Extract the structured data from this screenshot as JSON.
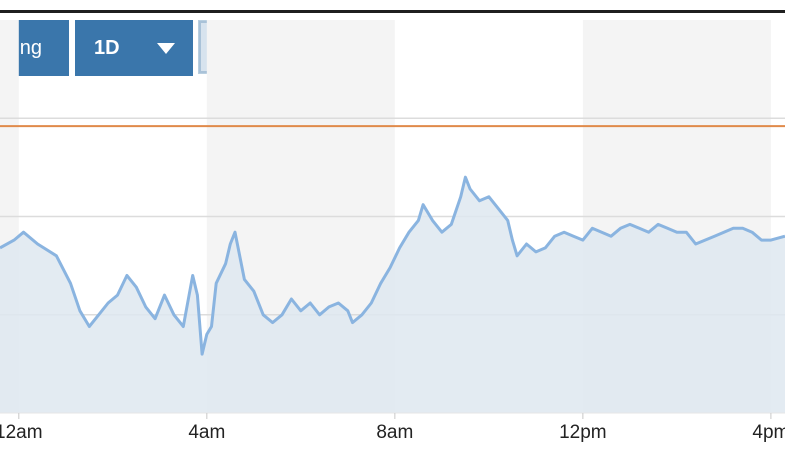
{
  "toolbar": {
    "chart_button_label": "arting",
    "range_selector": "1D",
    "unit_toggle": {
      "dollar": "$",
      "percent": "%",
      "selected": "$"
    }
  },
  "colors": {
    "line": "#8ab4e0",
    "area": "#dee8f0",
    "reference_line": "#e08a4a",
    "gridline": "#dcdcdc",
    "shaded_band": "#f4f4f4",
    "button": "#3a76ab"
  },
  "chart_data": {
    "type": "area",
    "x_tick_labels": [
      "12am",
      "4am",
      "8am",
      "12pm",
      "4pm"
    ],
    "xlim_hours": [
      -0.4,
      16.3
    ],
    "ylim": [
      0,
      100
    ],
    "reference_value": 73,
    "points": [
      [
        -0.4,
        42
      ],
      [
        -0.1,
        44
      ],
      [
        0.1,
        46
      ],
      [
        0.4,
        43
      ],
      [
        0.8,
        40
      ],
      [
        1.1,
        33
      ],
      [
        1.3,
        26
      ],
      [
        1.5,
        22
      ],
      [
        1.7,
        25
      ],
      [
        1.9,
        28
      ],
      [
        2.1,
        30
      ],
      [
        2.3,
        35
      ],
      [
        2.5,
        32
      ],
      [
        2.7,
        27
      ],
      [
        2.9,
        24
      ],
      [
        3.1,
        30
      ],
      [
        3.3,
        25
      ],
      [
        3.5,
        22
      ],
      [
        3.7,
        35
      ],
      [
        3.8,
        30
      ],
      [
        3.9,
        15
      ],
      [
        4.0,
        20
      ],
      [
        4.1,
        22
      ],
      [
        4.2,
        33
      ],
      [
        4.4,
        38
      ],
      [
        4.5,
        43
      ],
      [
        4.6,
        46
      ],
      [
        4.7,
        40
      ],
      [
        4.8,
        34
      ],
      [
        5.0,
        31
      ],
      [
        5.2,
        25
      ],
      [
        5.4,
        23
      ],
      [
        5.6,
        25
      ],
      [
        5.8,
        29
      ],
      [
        6.0,
        26
      ],
      [
        6.2,
        28
      ],
      [
        6.4,
        25
      ],
      [
        6.6,
        27
      ],
      [
        6.8,
        28
      ],
      [
        7.0,
        26
      ],
      [
        7.1,
        23
      ],
      [
        7.3,
        25
      ],
      [
        7.5,
        28
      ],
      [
        7.7,
        33
      ],
      [
        7.9,
        37
      ],
      [
        8.1,
        42
      ],
      [
        8.3,
        46
      ],
      [
        8.5,
        49
      ],
      [
        8.6,
        53
      ],
      [
        8.8,
        49
      ],
      [
        9.0,
        46
      ],
      [
        9.2,
        48
      ],
      [
        9.4,
        55
      ],
      [
        9.5,
        60
      ],
      [
        9.6,
        57
      ],
      [
        9.8,
        54
      ],
      [
        10.0,
        55
      ],
      [
        10.2,
        52
      ],
      [
        10.4,
        49
      ],
      [
        10.5,
        44
      ],
      [
        10.6,
        40
      ],
      [
        10.8,
        43
      ],
      [
        11.0,
        41
      ],
      [
        11.2,
        42
      ],
      [
        11.4,
        45
      ],
      [
        11.6,
        46
      ],
      [
        11.8,
        45
      ],
      [
        12.0,
        44
      ],
      [
        12.2,
        47
      ],
      [
        12.4,
        46
      ],
      [
        12.6,
        45
      ],
      [
        12.8,
        47
      ],
      [
        13.0,
        48
      ],
      [
        13.2,
        47
      ],
      [
        13.4,
        46
      ],
      [
        13.6,
        48
      ],
      [
        13.8,
        47
      ],
      [
        14.0,
        46
      ],
      [
        14.2,
        46
      ],
      [
        14.4,
        43
      ],
      [
        14.6,
        44
      ],
      [
        14.8,
        45
      ],
      [
        15.0,
        46
      ],
      [
        15.2,
        47
      ],
      [
        15.4,
        47
      ],
      [
        15.6,
        46
      ],
      [
        15.8,
        44
      ],
      [
        16.0,
        44
      ],
      [
        16.3,
        45
      ]
    ]
  }
}
